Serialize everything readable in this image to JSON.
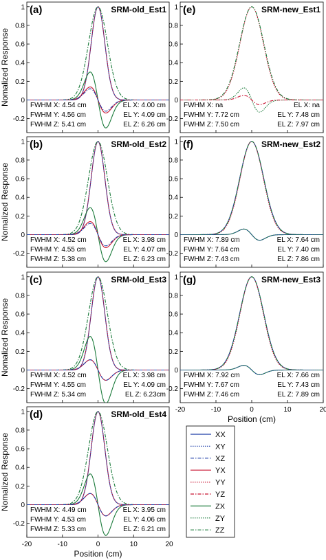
{
  "figure": {
    "ylabel": "Nomalized Response",
    "xlabel": "Position (cm)"
  },
  "legend": {
    "entries": [
      {
        "label": "XX",
        "color": "#1f3fa8",
        "dash": "solid"
      },
      {
        "label": "XY",
        "color": "#1f3fa8",
        "dash": "dotted"
      },
      {
        "label": "XZ",
        "color": "#1f3fa8",
        "dash": "dashdot"
      },
      {
        "label": "YX",
        "color": "#c8102e",
        "dash": "solid"
      },
      {
        "label": "YY",
        "color": "#c8102e",
        "dash": "dotted"
      },
      {
        "label": "YZ",
        "color": "#c8102e",
        "dash": "dashdot"
      },
      {
        "label": "ZX",
        "color": "#1a7a3a",
        "dash": "solid"
      },
      {
        "label": "ZY",
        "color": "#1a7a3a",
        "dash": "dotted"
      },
      {
        "label": "ZZ",
        "color": "#1a7a3a",
        "dash": "dashdot"
      }
    ]
  },
  "chart_data": [
    {
      "id": "a",
      "letter": "(a)",
      "type": "line",
      "title": "SRM-old_Est1",
      "xlim": [
        -20,
        20
      ],
      "ylim": [
        -0.35,
        1.05
      ],
      "yticks": [
        "1",
        "0.8",
        "0.6",
        "0.4",
        "0.2",
        "0",
        "-0.2"
      ],
      "xticks": [],
      "show_xlabel": false,
      "stats": {
        "fwhm": [
          "FWHM X: 4.54 cm",
          "FWHM Y: 4.56 cm",
          "FWHM Z: 5.41 cm"
        ],
        "el": [
          "EL X: 4.00 cm",
          "EL Y: 4.09 cm",
          "EL Z: 6.26 cm"
        ]
      },
      "series": [
        {
          "name": "XX",
          "peak": 1.0,
          "width": 4.54
        },
        {
          "name": "YY",
          "peak": 1.0,
          "width": 4.56
        },
        {
          "name": "ZZ",
          "peak": 1.0,
          "width": 6.26
        },
        {
          "name": "ZX",
          "pos_peak": 0.3,
          "neg_peak": -0.3
        },
        {
          "name": "YX",
          "pos_peak": 0.14,
          "neg_peak": -0.14
        },
        {
          "name": "XZ",
          "pos_peak": 0.12,
          "neg_peak": -0.12
        }
      ]
    },
    {
      "id": "b",
      "letter": "(b)",
      "type": "line",
      "title": "SRM-old_Est2",
      "xlim": [
        -20,
        20
      ],
      "ylim": [
        -0.35,
        1.05
      ],
      "yticks": [
        "1",
        "0.8",
        "0.6",
        "0.4",
        "0.2",
        "0",
        "-0.2"
      ],
      "xticks": [],
      "show_xlabel": false,
      "stats": {
        "fwhm": [
          "FWHM X: 4.52 cm",
          "FWHM Y: 4.55 cm",
          "FWHM Z: 5.38 cm"
        ],
        "el": [
          "EL X: 3.98 cm",
          "EL Y: 4.07 cm",
          "EL Z: 6.23 cm"
        ]
      },
      "series": [
        {
          "name": "XX",
          "peak": 1.0,
          "width": 4.52
        },
        {
          "name": "YY",
          "peak": 1.0,
          "width": 4.55
        },
        {
          "name": "ZZ",
          "peak": 1.0,
          "width": 6.23
        },
        {
          "name": "ZX",
          "pos_peak": 0.29,
          "neg_peak": -0.29
        },
        {
          "name": "YX",
          "pos_peak": 0.14,
          "neg_peak": -0.14
        },
        {
          "name": "XZ",
          "pos_peak": 0.12,
          "neg_peak": -0.12
        }
      ]
    },
    {
      "id": "c",
      "letter": "(c)",
      "type": "line",
      "title": "SRM-old_Est3",
      "xlim": [
        -20,
        20
      ],
      "ylim": [
        -0.35,
        1.05
      ],
      "yticks": [
        "1",
        "0.8",
        "0.6",
        "0.4",
        "0.2",
        "0",
        "-0.2"
      ],
      "xticks": [],
      "show_xlabel": false,
      "stats": {
        "fwhm": [
          "FWHM X: 4.52 cm",
          "FWHM Y: 4.55 cm",
          "FWHM Z: 5.34 cm"
        ],
        "el": [
          "EL X: 3.98 cm",
          "EL Y: 4.09 cm",
          "EL Z: 6.23cm"
        ]
      },
      "series": [
        {
          "name": "XX",
          "peak": 1.0,
          "width": 4.52
        },
        {
          "name": "YY",
          "peak": 1.0,
          "width": 4.55
        },
        {
          "name": "ZZ",
          "peak": 1.0,
          "width": 6.23
        },
        {
          "name": "ZX",
          "pos_peak": 0.36,
          "neg_peak": -0.36
        },
        {
          "name": "YX",
          "pos_peak": 0.11,
          "neg_peak": -0.11
        },
        {
          "name": "XZ",
          "pos_peak": 0.11,
          "neg_peak": -0.11
        }
      ]
    },
    {
      "id": "d",
      "letter": "(d)",
      "type": "line",
      "title": "SRM-old_Est4",
      "xlim": [
        -20,
        20
      ],
      "ylim": [
        -0.35,
        1.05
      ],
      "yticks": [
        "1",
        "0.8",
        "0.6",
        "0.4",
        "0.2",
        "0",
        "-0.2"
      ],
      "xticks": [
        "-20",
        "-10",
        "0",
        "10",
        "20"
      ],
      "show_xlabel": true,
      "stats": {
        "fwhm": [
          "FWHM X: 4.49 cm",
          "FWHM Y: 4.53 cm",
          "FWHM Z: 5.33 cm"
        ],
        "el": [
          "EL X: 3.95 cm",
          "EL Y: 4.06 cm",
          "EL Z: 6.21 cm"
        ]
      },
      "series": [
        {
          "name": "XX",
          "peak": 1.0,
          "width": 4.49
        },
        {
          "name": "YY",
          "peak": 1.0,
          "width": 4.53
        },
        {
          "name": "ZZ",
          "peak": 1.0,
          "width": 6.21
        },
        {
          "name": "ZX",
          "pos_peak": 0.33,
          "neg_peak": -0.33
        },
        {
          "name": "YX",
          "pos_peak": 0.12,
          "neg_peak": -0.12
        },
        {
          "name": "XZ",
          "pos_peak": 0.12,
          "neg_peak": -0.12
        }
      ]
    },
    {
      "id": "e",
      "letter": "(e)",
      "type": "line",
      "title": "SRM-new_Est1",
      "xlim": [
        -20,
        20
      ],
      "ylim": [
        -0.35,
        1.05
      ],
      "yticks": [
        "1",
        "0.8",
        "0.6",
        "0.4",
        "0.2",
        "0",
        "-0.2"
      ],
      "xticks": [],
      "show_xlabel": false,
      "stats": {
        "fwhm": [
          "FWHM X: na",
          "FWHM Y: 7.72 cm",
          "FWHM Z: 7.50 cm"
        ],
        "el": [
          "EL X: na",
          "EL Y: 7.48 cm",
          "EL Z: 7.97 cm"
        ]
      },
      "series": [
        {
          "name": "YY",
          "peak": 1.0,
          "width": 7.72
        },
        {
          "name": "ZZ",
          "peak": 1.0,
          "width": 7.97
        },
        {
          "name": "ZY",
          "pos_peak": 0.13,
          "neg_peak": -0.13
        },
        {
          "name": "YZ",
          "pos_peak": 0.05,
          "neg_peak": -0.05
        }
      ]
    },
    {
      "id": "f",
      "letter": "(f)",
      "type": "line",
      "title": "SRM-new_Est2",
      "xlim": [
        -20,
        20
      ],
      "ylim": [
        -0.35,
        1.05
      ],
      "yticks": [
        "1",
        "0.8",
        "0.6",
        "0.4",
        "0.2",
        "0",
        "-0.2"
      ],
      "xticks": [],
      "show_xlabel": false,
      "stats": {
        "fwhm": [
          "FWHM X: 7.89 cm",
          "FWHM Y: 7.64 cm",
          "FWHM Z: 7.43 cm"
        ],
        "el": [
          "EL X: 7.64 cm",
          "EL Y: 7.40 cm",
          "EL Z: 7.86 cm"
        ]
      },
      "series": [
        {
          "name": "XX",
          "peak": 1.0,
          "width": 7.89
        },
        {
          "name": "YY",
          "peak": 1.0,
          "width": 7.64
        },
        {
          "name": "ZZ",
          "peak": 1.0,
          "width": 7.86
        },
        {
          "name": "ZX",
          "pos_peak": 0.06,
          "neg_peak": -0.06
        },
        {
          "name": "XY",
          "pos_peak": 0.06,
          "neg_peak": -0.06
        }
      ]
    },
    {
      "id": "g",
      "letter": "(g)",
      "type": "line",
      "title": "SRM-new_Est3",
      "xlim": [
        -20,
        20
      ],
      "ylim": [
        -0.35,
        1.05
      ],
      "yticks": [
        "1",
        "0.8",
        "0.6",
        "0.4",
        "0.2",
        "0",
        "-0.2"
      ],
      "xticks": [
        "-20",
        "-10",
        "0",
        "10",
        "20"
      ],
      "show_xlabel": true,
      "stats": {
        "fwhm": [
          "FWHM X: 7.92 cm",
          "FWHM Y: 7.67 cm",
          "FWHM Z: 7.46 cm"
        ],
        "el": [
          "EL X: 7.66 cm",
          "EL Y: 7.43 cm",
          "EL Z: 7.89 cm"
        ]
      },
      "series": [
        {
          "name": "XX",
          "peak": 1.0,
          "width": 7.92
        },
        {
          "name": "YY",
          "peak": 1.0,
          "width": 7.67
        },
        {
          "name": "ZZ",
          "peak": 1.0,
          "width": 7.89
        },
        {
          "name": "ZX",
          "pos_peak": 0.05,
          "neg_peak": -0.05
        },
        {
          "name": "XY",
          "pos_peak": 0.05,
          "neg_peak": -0.05
        }
      ]
    }
  ]
}
